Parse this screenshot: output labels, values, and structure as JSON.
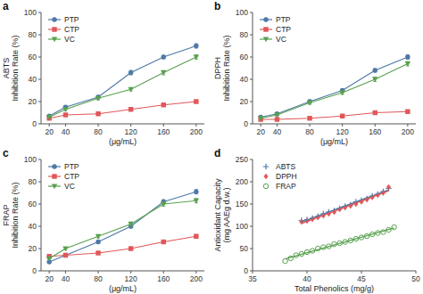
{
  "chart_data": [
    {
      "type": "line",
      "title": "a",
      "xlabel": "(μg/mL)",
      "ylabel": "ABTS\nInhibition Rate (%)",
      "x": [
        20,
        40,
        80,
        120,
        160,
        200
      ],
      "xlim": [
        10,
        210
      ],
      "ylim": [
        0,
        100
      ],
      "xticks": [
        20,
        40,
        80,
        120,
        160,
        200
      ],
      "yticks": [
        0,
        20,
        40,
        60,
        80,
        100
      ],
      "grid": false,
      "legend": "upper left",
      "series": [
        {
          "name": "PTP",
          "color": "#4e79a7",
          "marker": "circle",
          "values": [
            7,
            15,
            24,
            46,
            60,
            70
          ],
          "error": [
            0.8,
            1.2,
            1.5,
            2,
            1.5,
            2
          ]
        },
        {
          "name": "CTP",
          "color": "#e15759",
          "marker": "square",
          "values": [
            5,
            8,
            9,
            13,
            17,
            20
          ],
          "error": [
            0.5,
            0.5,
            1,
            1,
            1,
            1
          ]
        },
        {
          "name": "VC",
          "color": "#59a14f",
          "marker": "triangle-down",
          "values": [
            6,
            13,
            23,
            31,
            46,
            60
          ],
          "error": [
            0.5,
            1,
            1.5,
            1.5,
            2,
            2
          ]
        }
      ]
    },
    {
      "type": "line",
      "title": "b",
      "xlabel": "(μg/mL)",
      "ylabel": "DPPH\nInhibition Rate (%)",
      "x": [
        20,
        40,
        80,
        120,
        160,
        200
      ],
      "xlim": [
        10,
        210
      ],
      "ylim": [
        0,
        100
      ],
      "xticks": [
        20,
        40,
        80,
        120,
        160,
        200
      ],
      "yticks": [
        0,
        20,
        40,
        60,
        80,
        100
      ],
      "grid": false,
      "legend": "upper left",
      "series": [
        {
          "name": "PTP",
          "color": "#4e79a7",
          "marker": "circle",
          "values": [
            6,
            9,
            20,
            30,
            48,
            60
          ],
          "error": [
            0.5,
            1,
            1.5,
            1.5,
            1.5,
            2
          ]
        },
        {
          "name": "CTP",
          "color": "#e15759",
          "marker": "square",
          "values": [
            4,
            4,
            5,
            7,
            10,
            11
          ],
          "error": [
            0.3,
            0.5,
            0.5,
            0.5,
            1,
            1
          ]
        },
        {
          "name": "VC",
          "color": "#59a14f",
          "marker": "triangle-down",
          "values": [
            5,
            8,
            19,
            28,
            40,
            54
          ],
          "error": [
            0.5,
            1,
            1.5,
            1.5,
            2,
            2
          ]
        }
      ]
    },
    {
      "type": "line",
      "title": "c",
      "xlabel": "(μg/mL)",
      "ylabel": "FRAP\nInhibition Rate (%)",
      "x": [
        20,
        40,
        80,
        120,
        160,
        200
      ],
      "xlim": [
        10,
        210
      ],
      "ylim": [
        0,
        100
      ],
      "xticks": [
        20,
        40,
        80,
        120,
        160,
        200
      ],
      "yticks": [
        0,
        20,
        40,
        60,
        80,
        100
      ],
      "grid": false,
      "legend": "upper left",
      "series": [
        {
          "name": "PTP",
          "color": "#4e79a7",
          "marker": "circle",
          "values": [
            8,
            14,
            26,
            40,
            62,
            71
          ],
          "error": [
            0.5,
            1,
            1.5,
            1.5,
            2,
            2
          ]
        },
        {
          "name": "CTP",
          "color": "#e15759",
          "marker": "square",
          "values": [
            13,
            14,
            16,
            20,
            26,
            31
          ],
          "error": [
            0.5,
            0.5,
            1,
            1,
            1,
            1.5
          ]
        },
        {
          "name": "VC",
          "color": "#59a14f",
          "marker": "triangle-down",
          "values": [
            11,
            20,
            31,
            42,
            60,
            63
          ],
          "error": [
            0.5,
            1,
            1.5,
            2,
            2,
            2
          ]
        }
      ]
    },
    {
      "type": "scatter",
      "title": "d",
      "xlabel": "Total Phenolics (mg/g)",
      "ylabel": "Antioxidant Capacity\n(mg AAEg d.w.)",
      "xlim": [
        35,
        50
      ],
      "ylim": [
        0,
        250
      ],
      "xticks": [
        35,
        40,
        45,
        50
      ],
      "yticks": [
        0,
        50,
        100,
        150,
        200,
        250
      ],
      "grid": false,
      "legend": "upper left",
      "series": [
        {
          "name": "ABTS",
          "color": "#4e79a7",
          "marker": "plus",
          "x": [
            39.5,
            40.0,
            40.5,
            41.0,
            41.5,
            42.0,
            42.5,
            43.0,
            43.5,
            44.0,
            44.5,
            45.0,
            45.5,
            46.0,
            46.5,
            47.0,
            47.5
          ],
          "values": [
            113,
            115,
            118,
            122,
            128,
            132,
            135,
            140,
            145,
            148,
            155,
            158,
            162,
            168,
            172,
            178,
            185
          ]
        },
        {
          "name": "DPPH",
          "color": "#e15759",
          "marker": "diamond",
          "x": [
            39.5,
            40.0,
            40.5,
            41.0,
            41.5,
            42.0,
            42.5,
            43.0,
            43.5,
            44.0,
            44.5,
            45.0,
            45.5,
            46.0,
            46.5,
            47.0,
            47.5
          ],
          "values": [
            110,
            112,
            116,
            120,
            124,
            128,
            132,
            138,
            142,
            146,
            150,
            155,
            160,
            165,
            170,
            175,
            188
          ]
        },
        {
          "name": "FRAP",
          "color": "#59a14f",
          "marker": "open-circle",
          "x": [
            38.0,
            38.5,
            39.0,
            39.5,
            40.0,
            40.5,
            41.0,
            41.5,
            42.0,
            42.5,
            43.0,
            43.5,
            44.0,
            44.5,
            45.0,
            45.5,
            46.0,
            46.5,
            47.0,
            47.5,
            48.0
          ],
          "values": [
            22,
            28,
            35,
            38,
            42,
            45,
            50,
            53,
            55,
            60,
            62,
            65,
            68,
            72,
            75,
            78,
            82,
            85,
            87,
            92,
            98
          ]
        },
        {
          "type": "line",
          "color": "#4e79a7",
          "line_style": "solid",
          "x": [
            39.5,
            47.5
          ],
          "values": [
            109.59,
            181.47
          ]
        },
        {
          "type": "line",
          "color": "#e15759",
          "line_style": "solid",
          "x": [
            39.5,
            47.5
          ],
          "values": [
            106.08,
            179.92
          ]
        },
        {
          "type": "line",
          "color": "#59a14f",
          "line_style": "solid",
          "x": [
            38.0,
            48.0
          ],
          "values": [
            26.8,
            96.25
          ]
        }
      ]
    }
  ]
}
